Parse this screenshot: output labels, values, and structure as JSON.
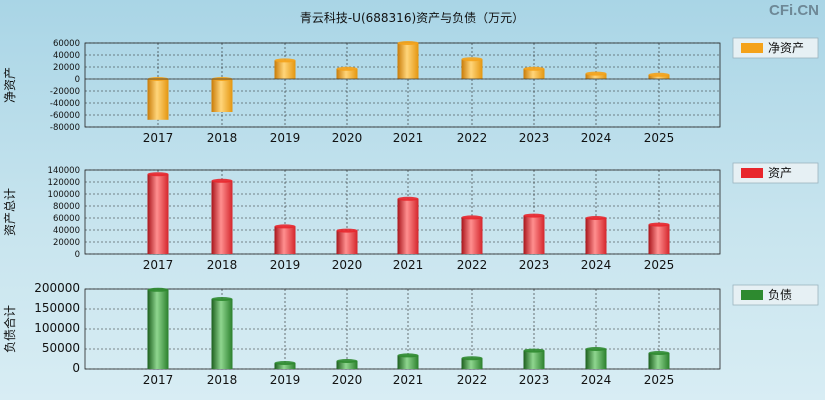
{
  "title": "青云科技-U(688316)资产与负债（万元）",
  "watermark": "CFi.CN",
  "colors": {
    "net_assets": "#f4a21a",
    "assets": "#e8262c",
    "liabilities": "#2d8a2f"
  },
  "chart_data": [
    {
      "type": "bar",
      "ylabel": "净资产",
      "legend": {
        "label": "净资产",
        "position": "right"
      },
      "categories": [
        "2017",
        "2018",
        "2019",
        "2020",
        "2021",
        "2022",
        "2023",
        "2024",
        "2025"
      ],
      "series": [
        {
          "name": "净资产",
          "values": [
            -68000,
            -55000,
            31000,
            17000,
            60000,
            33000,
            17000,
            9000,
            7000
          ]
        }
      ],
      "ylim": [
        -80000,
        60000
      ],
      "yticks": [
        60000,
        40000,
        20000,
        0,
        -20000,
        -40000,
        -60000,
        -80000
      ],
      "grid": true
    },
    {
      "type": "bar",
      "ylabel": "资产总计",
      "legend": {
        "label": "资产",
        "position": "right"
      },
      "categories": [
        "2017",
        "2018",
        "2019",
        "2020",
        "2021",
        "2022",
        "2023",
        "2024",
        "2025"
      ],
      "series": [
        {
          "name": "资产",
          "values": [
            133000,
            122000,
            46000,
            39000,
            92000,
            61000,
            64000,
            60000,
            49000
          ]
        }
      ],
      "ylim": [
        0,
        140000
      ],
      "yticks": [
        140000,
        120000,
        100000,
        80000,
        60000,
        40000,
        20000,
        0
      ],
      "grid": true
    },
    {
      "type": "bar",
      "ylabel": "负债合计",
      "legend": {
        "label": "负债",
        "position": "right"
      },
      "categories": [
        "2017",
        "2018",
        "2019",
        "2020",
        "2021",
        "2022",
        "2023",
        "2024",
        "2025"
      ],
      "series": [
        {
          "name": "负债",
          "values": [
            198000,
            175000,
            15000,
            20000,
            34000,
            27000,
            46000,
            50000,
            40000
          ]
        }
      ],
      "ylim": [
        0,
        200000
      ],
      "yticks": [
        200000,
        150000,
        100000,
        50000,
        0
      ],
      "grid": true
    }
  ]
}
